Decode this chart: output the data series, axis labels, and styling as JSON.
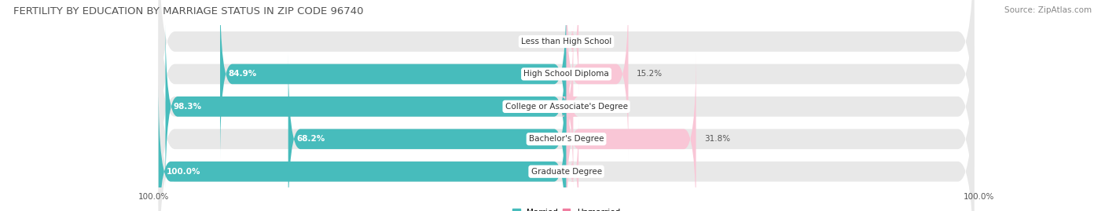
{
  "title": "FERTILITY BY EDUCATION BY MARRIAGE STATUS IN ZIP CODE 96740",
  "source": "Source: ZipAtlas.com",
  "categories": [
    "Less than High School",
    "High School Diploma",
    "College or Associate's Degree",
    "Bachelor's Degree",
    "Graduate Degree"
  ],
  "married": [
    0.0,
    84.9,
    98.3,
    68.2,
    100.0
  ],
  "unmarried": [
    0.0,
    15.2,
    1.7,
    31.8,
    0.0
  ],
  "married_color": "#47BCBC",
  "unmarried_color": "#F07EA0",
  "unmarried_color_light": "#F9C6D6",
  "bar_bg_color": "#E8E8E8",
  "fig_bg_color": "#FFFFFF",
  "title_fontsize": 9.5,
  "source_fontsize": 7.5,
  "label_fontsize": 7.5,
  "value_fontsize": 7.5,
  "axis_label": "100.0%"
}
